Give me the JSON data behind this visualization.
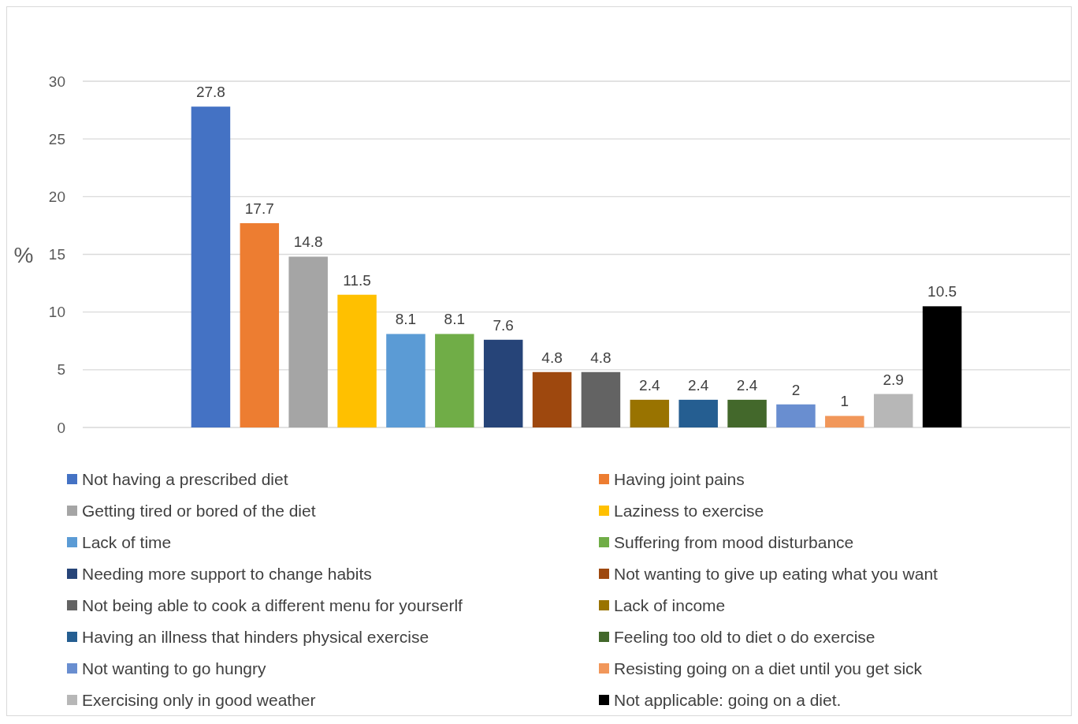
{
  "chart_data": {
    "type": "bar",
    "ylabel": "%",
    "categories": [
      null
    ],
    "ylim": [
      0,
      30
    ],
    "yticks": [
      0,
      5,
      10,
      15,
      20,
      25,
      30
    ],
    "grid": "y",
    "legend": "bottom",
    "data_labels": true,
    "series": [
      {
        "name": "Not having a prescribed diet",
        "color": "#4472c4",
        "values": [
          27.8
        ]
      },
      {
        "name": "Having joint pains",
        "color": "#ed7d31",
        "values": [
          17.7
        ]
      },
      {
        "name": "Getting tired or bored of the diet",
        "color": "#a5a5a5",
        "values": [
          14.8
        ]
      },
      {
        "name": "Laziness to exercise",
        "color": "#ffc000",
        "values": [
          11.5
        ]
      },
      {
        "name": "Lack of time",
        "color": "#5b9bd5",
        "values": [
          8.1
        ]
      },
      {
        "name": "Suffering from mood disturbance",
        "color": "#70ad47",
        "values": [
          8.1
        ]
      },
      {
        "name": "Needing more support to change habits",
        "color": "#264478",
        "values": [
          7.6
        ]
      },
      {
        "name": "Not wanting to give up eating what you want",
        "color": "#9e480e",
        "values": [
          4.8
        ]
      },
      {
        "name": "Not being able to cook a different menu for yourserlf",
        "color": "#636363",
        "values": [
          4.8
        ]
      },
      {
        "name": "Lack of income",
        "color": "#997300",
        "values": [
          2.4
        ]
      },
      {
        "name": "Having an illness that hinders physical exercise",
        "color": "#255e91",
        "values": [
          2.4
        ]
      },
      {
        "name": "Feeling too old to diet o do exercise",
        "color": "#43682b",
        "values": [
          2.4
        ]
      },
      {
        "name": "Not wanting to go hungry",
        "color": "#698ed0",
        "values": [
          2
        ]
      },
      {
        "name": "Resisting going on a diet until you get sick",
        "color": "#f1975a",
        "values": [
          1
        ]
      },
      {
        "name": "Exercising only in good weather",
        "color": "#b7b7b7",
        "values": [
          2.9
        ]
      },
      {
        "name": "Not applicable: going on a diet.",
        "color": "#000000",
        "values": [
          10.5
        ]
      }
    ]
  }
}
